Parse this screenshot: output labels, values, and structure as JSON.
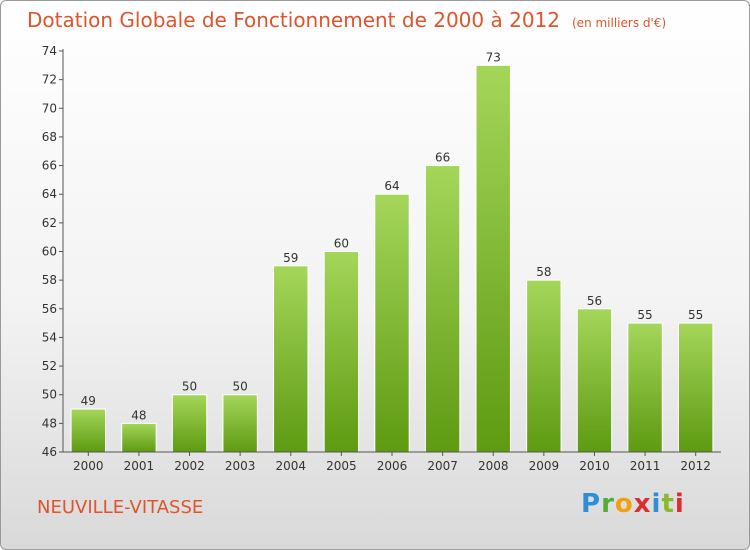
{
  "header": {
    "title": "Dotation Globale de Fonctionnement de 2000 à 2012",
    "unit": "(en milliers d'€)"
  },
  "commune": "NEUVILLE-VITASSE",
  "logo": {
    "p": "P",
    "r": "r",
    "o": "o",
    "x": "x",
    "i": "i",
    "t": "t",
    "i2": "i"
  },
  "colors": {
    "title": "#e0542b",
    "bar_top": "#a4d65a",
    "bar_bottom": "#5e9a12",
    "axis": "#555555"
  },
  "chart_data": {
    "type": "bar",
    "title": "Dotation Globale de Fonctionnement de 2000 à 2012",
    "xlabel": "",
    "ylabel": "",
    "categories": [
      "2000",
      "2001",
      "2002",
      "2003",
      "2004",
      "2005",
      "2006",
      "2007",
      "2008",
      "2009",
      "2010",
      "2011",
      "2012"
    ],
    "values": [
      49,
      48,
      50,
      50,
      59,
      60,
      64,
      66,
      73,
      58,
      56,
      55,
      55
    ],
    "ylim": [
      46,
      74
    ],
    "yticks": [
      46,
      48,
      50,
      52,
      54,
      56,
      58,
      60,
      62,
      64,
      66,
      68,
      70,
      72,
      74
    ],
    "grid": false,
    "legend": "none"
  }
}
